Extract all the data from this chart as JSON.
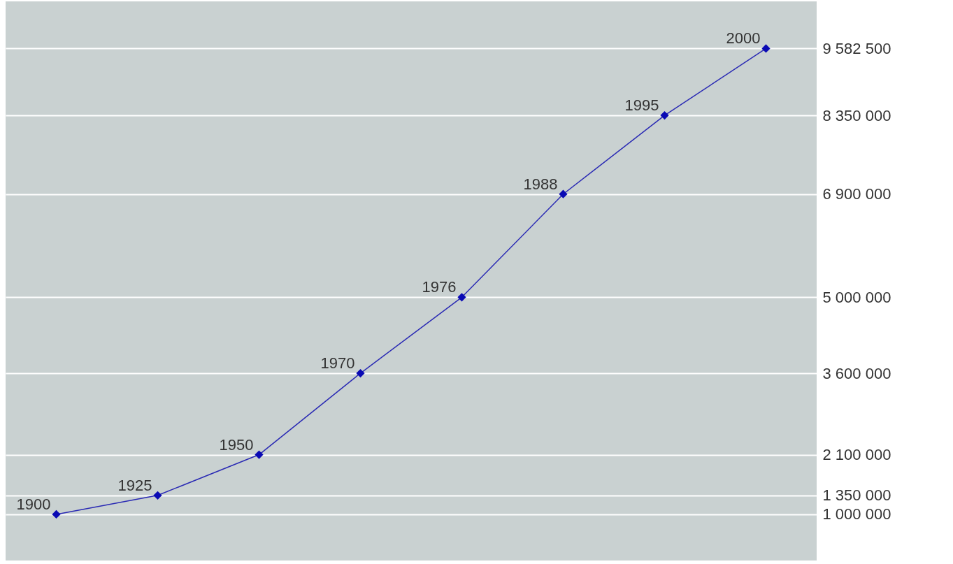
{
  "chart_data": {
    "type": "line",
    "categories": [
      "1900",
      "1925",
      "1950",
      "1970",
      "1976",
      "1988",
      "1995",
      "2000"
    ],
    "series": [
      {
        "color": "#2a2ab4",
        "values": [
          1000000,
          1350000,
          2100000,
          3600000,
          5000000,
          6900000,
          8350000,
          9582500
        ]
      }
    ],
    "ylim": [
      150000,
      10450000
    ],
    "yticks": [
      {
        "value": 1000000,
        "label": "1 000 000"
      },
      {
        "value": 1350000,
        "label": "1 350 000"
      },
      {
        "value": 2100000,
        "label": "2 100 000"
      },
      {
        "value": 3600000,
        "label": "3 600 000"
      },
      {
        "value": 5000000,
        "label": "5 000 000"
      },
      {
        "value": 6900000,
        "label": "6 900 000"
      },
      {
        "value": 8350000,
        "label": "8 350 000"
      },
      {
        "value": 9582500,
        "label": "9 582 500"
      }
    ],
    "tick_labels": "y",
    "grid": "y",
    "marker": "diamond",
    "line_style": "solid"
  }
}
